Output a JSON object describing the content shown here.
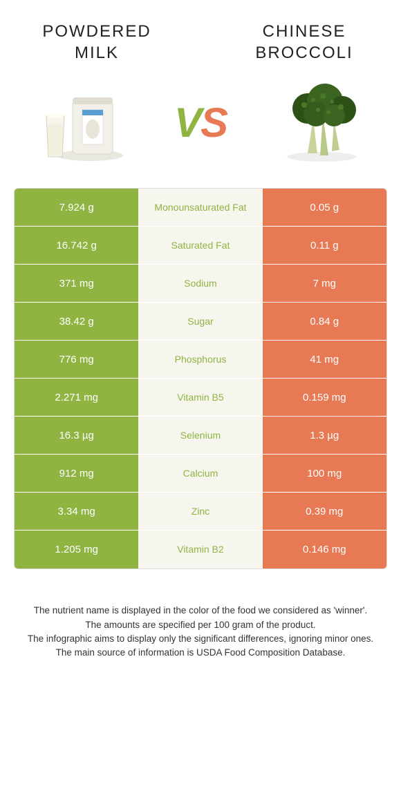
{
  "colors": {
    "left": "#8fb442",
    "right": "#e77a55",
    "mid_bg": "#f6f6ee"
  },
  "header": {
    "left_title": "POWDERED MILK",
    "right_title": "CHINESE BROCCOLI",
    "vs": "VS"
  },
  "rows": [
    {
      "left": "7.924 g",
      "label": "Monounsaturated Fat",
      "right": "0.05 g",
      "winner": "left"
    },
    {
      "left": "16.742 g",
      "label": "Saturated Fat",
      "right": "0.11 g",
      "winner": "left"
    },
    {
      "left": "371 mg",
      "label": "Sodium",
      "right": "7 mg",
      "winner": "left"
    },
    {
      "left": "38.42 g",
      "label": "Sugar",
      "right": "0.84 g",
      "winner": "left"
    },
    {
      "left": "776 mg",
      "label": "Phosphorus",
      "right": "41 mg",
      "winner": "left"
    },
    {
      "left": "2.271 mg",
      "label": "Vitamin B5",
      "right": "0.159 mg",
      "winner": "left"
    },
    {
      "left": "16.3 µg",
      "label": "Selenium",
      "right": "1.3 µg",
      "winner": "left"
    },
    {
      "left": "912 mg",
      "label": "Calcium",
      "right": "100 mg",
      "winner": "left"
    },
    {
      "left": "3.34 mg",
      "label": "Zinc",
      "right": "0.39 mg",
      "winner": "left"
    },
    {
      "left": "1.205 mg",
      "label": "Vitamin B2",
      "right": "0.146 mg",
      "winner": "left"
    }
  ],
  "footer": {
    "line1": "The nutrient name is displayed in the color of the food we considered as 'winner'.",
    "line2": "The amounts are specified per 100 gram of the product.",
    "line3": "The infographic aims to display only the significant differences, ignoring minor ones.",
    "line4": "The main source of information is USDA Food Composition Database."
  }
}
